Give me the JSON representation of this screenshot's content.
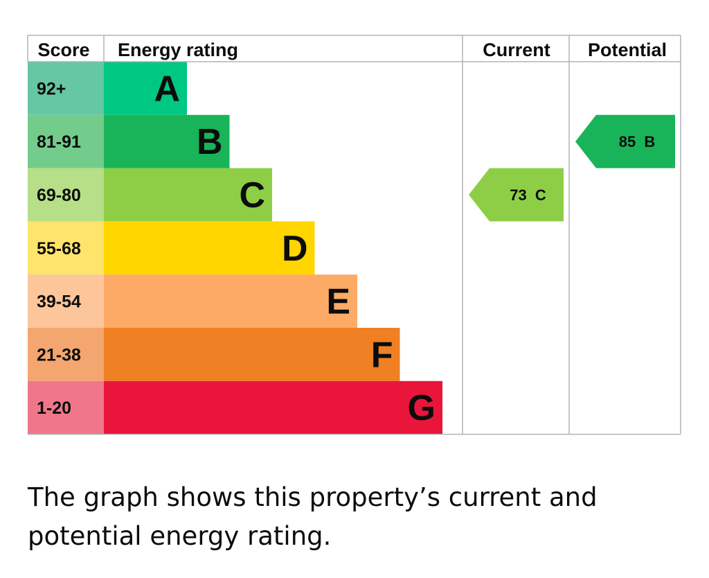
{
  "chart_data": {
    "type": "bar",
    "header": {
      "score": "Score",
      "rating": "Energy rating",
      "current": "Current",
      "potential": "Potential"
    },
    "bands": [
      {
        "letter": "A",
        "score": "92+",
        "color": "#00c781",
        "score_color": "#65c8a3"
      },
      {
        "letter": "B",
        "score": "81-91",
        "color": "#19b459",
        "score_color": "#73cc8b"
      },
      {
        "letter": "C",
        "score": "69-80",
        "color": "#8dce46",
        "score_color": "#b6df87"
      },
      {
        "letter": "D",
        "score": "55-68",
        "color": "#ffd500",
        "score_color": "#fde46a"
      },
      {
        "letter": "E",
        "score": "39-54",
        "color": "#fcaa65",
        "score_color": "#fdc59a"
      },
      {
        "letter": "F",
        "score": "21-38",
        "color": "#ef8023",
        "score_color": "#f3a670"
      },
      {
        "letter": "G",
        "score": "1-20",
        "color": "#e9153b",
        "score_color": "#f0778a"
      }
    ],
    "current": {
      "value": 73,
      "band": "C",
      "label": "73  C",
      "color": "#8dce46"
    },
    "potential": {
      "value": 85,
      "band": "B",
      "label": "85  B",
      "color": "#19b459"
    }
  },
  "caption": "The graph shows this property’s current and potential energy rating."
}
